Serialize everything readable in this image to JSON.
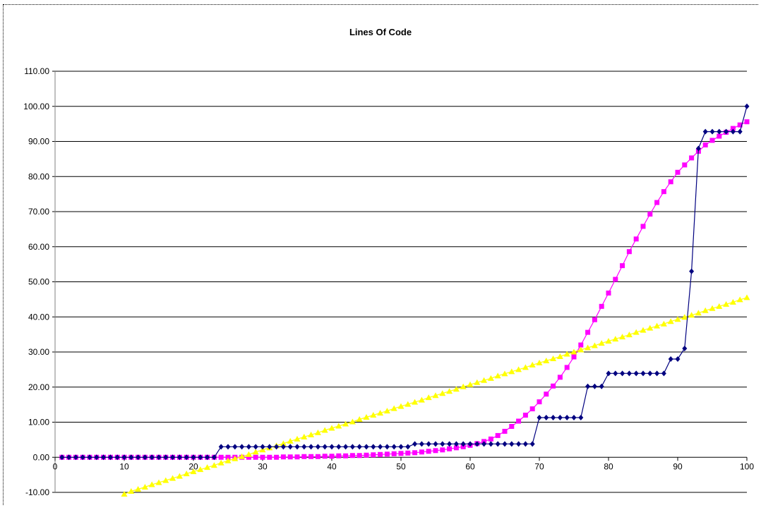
{
  "chart_data": {
    "type": "line",
    "title": "Lines Of Code",
    "xlabel": "",
    "ylabel": "",
    "xlim": [
      0,
      100
    ],
    "ylim": [
      -10,
      110
    ],
    "x_ticks": [
      "0",
      "10",
      "20",
      "30",
      "40",
      "50",
      "60",
      "70",
      "80",
      "90",
      "100"
    ],
    "y_ticks": [
      "-10.00",
      "0.00",
      "10.00",
      "20.00",
      "30.00",
      "40.00",
      "50.00",
      "60.00",
      "70.00",
      "80.00",
      "90.00",
      "100.00",
      "110.00"
    ],
    "grid": "horizontal",
    "legend": "none",
    "series": [
      {
        "color": "#000080",
        "marker": "diamond",
        "x": [
          1,
          2,
          3,
          4,
          5,
          6,
          7,
          8,
          9,
          10,
          11,
          12,
          13,
          14,
          15,
          16,
          17,
          18,
          19,
          20,
          21,
          22,
          23,
          24,
          25,
          26,
          27,
          28,
          29,
          30,
          31,
          32,
          33,
          34,
          35,
          36,
          37,
          38,
          39,
          40,
          41,
          42,
          43,
          44,
          45,
          46,
          47,
          48,
          49,
          50,
          51,
          52,
          53,
          54,
          55,
          56,
          57,
          58,
          59,
          60,
          61,
          62,
          63,
          64,
          65,
          66,
          67,
          68,
          69,
          70,
          71,
          72,
          73,
          74,
          75,
          76,
          77,
          78,
          79,
          80,
          81,
          82,
          83,
          84,
          85,
          86,
          87,
          88,
          89,
          90,
          91,
          92,
          93,
          94,
          95,
          96,
          97,
          98,
          99,
          100
        ],
        "values": [
          0,
          0,
          0,
          0,
          0,
          0,
          0,
          0,
          0,
          0,
          0,
          0,
          0,
          0,
          0,
          0,
          0,
          0,
          0,
          0,
          0,
          0,
          0,
          3,
          3,
          3,
          3,
          3,
          3,
          3,
          3,
          3,
          3,
          3,
          3,
          3,
          3,
          3,
          3,
          3,
          3,
          3,
          3,
          3,
          3,
          3,
          3,
          3,
          3,
          3,
          3,
          3.8,
          3.8,
          3.8,
          3.8,
          3.8,
          3.8,
          3.8,
          3.8,
          3.8,
          3.8,
          3.8,
          3.8,
          3.8,
          3.8,
          3.8,
          3.8,
          3.8,
          3.8,
          11.3,
          11.3,
          11.3,
          11.3,
          11.3,
          11.3,
          11.3,
          20.2,
          20.2,
          20.2,
          23.9,
          23.9,
          23.9,
          23.9,
          23.9,
          23.9,
          23.9,
          23.9,
          23.9,
          28,
          28,
          31,
          53,
          88,
          92.8,
          92.8,
          92.8,
          92.8,
          92.8,
          92.8,
          100
        ]
      },
      {
        "color": "#FF00FF",
        "marker": "square",
        "x": [
          1,
          2,
          3,
          4,
          5,
          6,
          7,
          8,
          9,
          10,
          11,
          12,
          13,
          14,
          15,
          16,
          17,
          18,
          19,
          20,
          21,
          22,
          23,
          24,
          25,
          26,
          27,
          28,
          29,
          30,
          31,
          32,
          33,
          34,
          35,
          36,
          37,
          38,
          39,
          40,
          41,
          42,
          43,
          44,
          45,
          46,
          47,
          48,
          49,
          50,
          51,
          52,
          53,
          54,
          55,
          56,
          57,
          58,
          59,
          60,
          61,
          62,
          63,
          64,
          65,
          66,
          67,
          68,
          69,
          70,
          71,
          72,
          73,
          74,
          75,
          76,
          77,
          78,
          79,
          80,
          81,
          82,
          83,
          84,
          85,
          86,
          87,
          88,
          89,
          90,
          91,
          92,
          93,
          94,
          95,
          96,
          97,
          98,
          99,
          100
        ],
        "values": [
          0,
          0,
          0,
          0,
          0,
          0,
          0,
          0,
          0,
          0,
          0,
          0,
          0,
          0,
          0,
          0,
          0,
          0,
          0,
          0,
          0,
          0,
          0,
          0,
          0,
          0,
          0,
          0,
          0,
          0,
          0,
          0,
          0.1,
          0.1,
          0.1,
          0.2,
          0.2,
          0.2,
          0.3,
          0.3,
          0.4,
          0.4,
          0.5,
          0.5,
          0.6,
          0.7,
          0.8,
          0.9,
          1,
          1.1,
          1.2,
          1.3,
          1.5,
          1.7,
          1.9,
          2.1,
          2.4,
          2.7,
          3,
          3.4,
          3.9,
          4.5,
          5.2,
          6.2,
          7.4,
          8.8,
          10.3,
          12,
          13.8,
          15.8,
          18,
          20.3,
          22.8,
          25.6,
          28.6,
          32,
          35.6,
          39.2,
          43,
          46.8,
          50.7,
          54.6,
          58.6,
          62.2,
          65.8,
          69.3,
          72.6,
          75.7,
          78.5,
          81.2,
          83.3,
          85.3,
          87.2,
          89,
          90.3,
          91.5,
          92.6,
          93.7,
          94.7,
          95.6
        ]
      },
      {
        "color": "#FFFF00",
        "marker": "triangle",
        "x": [
          10,
          11,
          12,
          13,
          14,
          15,
          16,
          17,
          18,
          19,
          20,
          21,
          22,
          23,
          24,
          25,
          26,
          27,
          28,
          29,
          30,
          31,
          32,
          33,
          34,
          35,
          36,
          37,
          38,
          39,
          40,
          41,
          42,
          43,
          44,
          45,
          46,
          47,
          48,
          49,
          50,
          51,
          52,
          53,
          54,
          55,
          56,
          57,
          58,
          59,
          60,
          61,
          62,
          63,
          64,
          65,
          66,
          67,
          68,
          69,
          70,
          71,
          72,
          73,
          74,
          75,
          76,
          77,
          78,
          79,
          80,
          81,
          82,
          83,
          84,
          85,
          86,
          87,
          88,
          89,
          90,
          91,
          92,
          93,
          94,
          95,
          96,
          97,
          98,
          99,
          100
        ],
        "values": [
          -10.5,
          -9.7,
          -9.1,
          -8.5,
          -7.8,
          -7.2,
          -6.6,
          -6,
          -5.4,
          -4.7,
          -4.1,
          -3.5,
          -2.9,
          -2.3,
          -1.6,
          -1,
          -0.4,
          0.2,
          0.8,
          1.5,
          2.1,
          2.7,
          3.3,
          3.9,
          4.6,
          5.2,
          5.8,
          6.4,
          7,
          7.7,
          8.3,
          8.9,
          9.5,
          10.1,
          10.8,
          11.4,
          12,
          12.6,
          13.2,
          13.9,
          14.5,
          15.1,
          15.7,
          16.3,
          17,
          17.6,
          18.2,
          18.8,
          19.4,
          20.1,
          20.7,
          21.3,
          21.9,
          22.5,
          23.2,
          23.8,
          24.4,
          25,
          25.6,
          26.3,
          26.9,
          27.5,
          28.1,
          28.7,
          29.4,
          30,
          30.6,
          31.2,
          31.8,
          32.5,
          33.1,
          33.7,
          34.3,
          34.9,
          35.6,
          36.2,
          36.8,
          37.4,
          38,
          38.7,
          39.3,
          39.9,
          40.5,
          41.1,
          41.8,
          42.4,
          43,
          43.6,
          44.2,
          44.9,
          45.5
        ]
      }
    ]
  }
}
